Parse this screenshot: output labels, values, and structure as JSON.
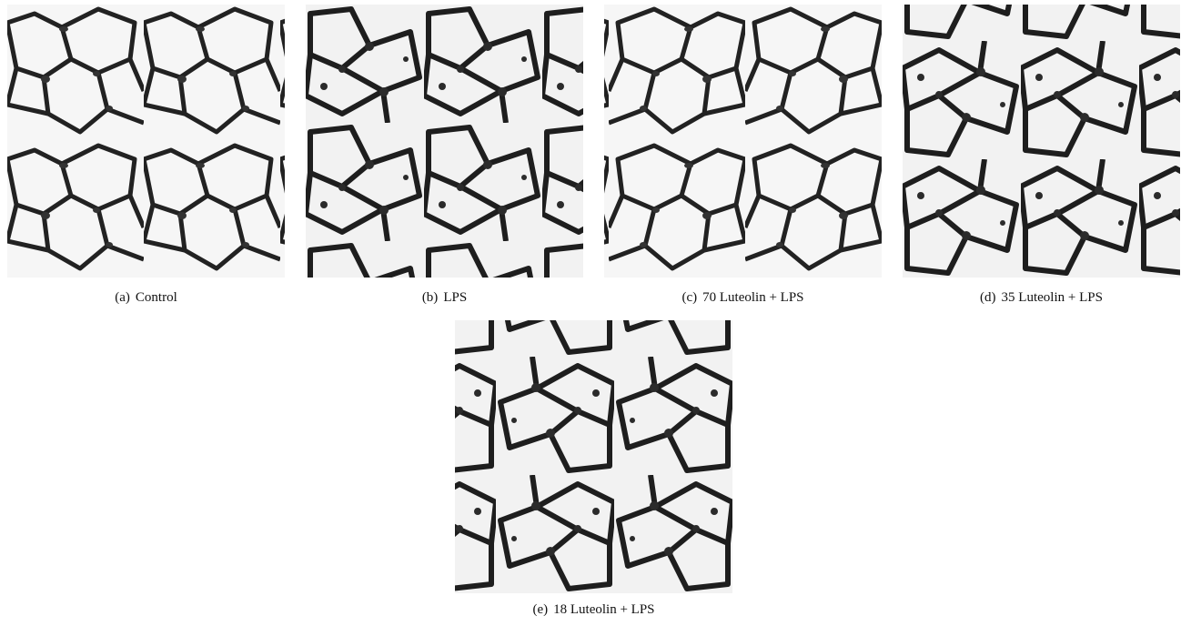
{
  "figure": {
    "panels": [
      {
        "label": "(a)",
        "caption": "Control"
      },
      {
        "label": "(b)",
        "caption": "LPS"
      },
      {
        "label": "(c)",
        "caption": "70 Luteolin + LPS"
      },
      {
        "label": "(d)",
        "caption": "35 Luteolin + LPS"
      },
      {
        "label": "(e)",
        "caption": "18 Luteolin + LPS"
      }
    ]
  }
}
